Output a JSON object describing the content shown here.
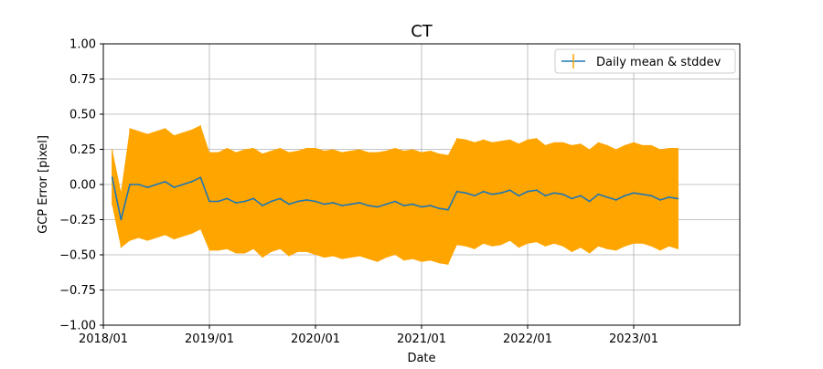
{
  "chart_data": {
    "type": "line",
    "title": "CT",
    "xlabel": "Date",
    "ylabel": "GCP Error [pixel]",
    "xlim": [
      "2018/01",
      "2024/01"
    ],
    "ylim": [
      -1.0,
      1.0
    ],
    "grid": true,
    "legend_position": "top-right",
    "x_tick_labels": [
      "2018/01",
      "2019/01",
      "2020/01",
      "2021/01",
      "2022/01",
      "2023/01"
    ],
    "y_tick_labels": [
      "1.00",
      "0.75",
      "0.50",
      "0.25",
      "0.00",
      "−0.25",
      "−0.50",
      "−0.75",
      "−1.00"
    ],
    "y_ticks": [
      1.0,
      0.75,
      0.5,
      0.25,
      0.0,
      -0.25,
      -0.5,
      -0.75,
      -1.0
    ],
    "series": [
      {
        "name": "Daily mean & stddev",
        "mean_color": "#1f77b4",
        "errorbar_color": "#ffa500",
        "x": [
          "2018/02",
          "2018/03",
          "2018/04",
          "2018/05",
          "2018/06",
          "2018/07",
          "2018/08",
          "2018/09",
          "2018/10",
          "2018/11",
          "2018/12",
          "2019/01",
          "2019/02",
          "2019/03",
          "2019/04",
          "2019/05",
          "2019/06",
          "2019/07",
          "2019/08",
          "2019/09",
          "2019/10",
          "2019/11",
          "2019/12",
          "2020/01",
          "2020/02",
          "2020/03",
          "2020/04",
          "2020/05",
          "2020/06",
          "2020/07",
          "2020/08",
          "2020/09",
          "2020/10",
          "2020/11",
          "2020/12",
          "2021/01",
          "2021/02",
          "2021/03",
          "2021/04",
          "2021/05",
          "2021/06",
          "2021/07",
          "2021/08",
          "2021/09",
          "2021/10",
          "2021/11",
          "2021/12",
          "2022/01",
          "2022/02",
          "2022/03",
          "2022/04",
          "2022/05",
          "2022/06",
          "2022/07",
          "2022/08",
          "2022/09",
          "2022/10",
          "2022/11",
          "2022/12",
          "2023/01",
          "2023/02",
          "2023/03",
          "2023/04",
          "2023/05",
          "2023/06"
        ],
        "mean": [
          0.05,
          -0.25,
          0.0,
          0.0,
          -0.02,
          0.0,
          0.02,
          -0.02,
          0.0,
          0.02,
          0.05,
          -0.12,
          -0.12,
          -0.1,
          -0.13,
          -0.12,
          -0.1,
          -0.15,
          -0.12,
          -0.1,
          -0.14,
          -0.12,
          -0.11,
          -0.12,
          -0.14,
          -0.13,
          -0.15,
          -0.14,
          -0.13,
          -0.15,
          -0.16,
          -0.14,
          -0.12,
          -0.15,
          -0.14,
          -0.16,
          -0.15,
          -0.17,
          -0.18,
          -0.05,
          -0.06,
          -0.08,
          -0.05,
          -0.07,
          -0.06,
          -0.04,
          -0.08,
          -0.05,
          -0.04,
          -0.08,
          -0.06,
          -0.07,
          -0.1,
          -0.08,
          -0.12,
          -0.07,
          -0.09,
          -0.11,
          -0.08,
          -0.06,
          -0.07,
          -0.08,
          -0.11,
          -0.09,
          -0.1
        ],
        "stddev": [
          0.2,
          0.2,
          0.4,
          0.38,
          0.38,
          0.38,
          0.38,
          0.37,
          0.37,
          0.37,
          0.37,
          0.35,
          0.35,
          0.36,
          0.36,
          0.37,
          0.36,
          0.37,
          0.36,
          0.36,
          0.37,
          0.36,
          0.37,
          0.38,
          0.38,
          0.38,
          0.38,
          0.38,
          0.38,
          0.38,
          0.39,
          0.38,
          0.38,
          0.39,
          0.39,
          0.39,
          0.39,
          0.39,
          0.39,
          0.38,
          0.38,
          0.38,
          0.37,
          0.37,
          0.37,
          0.36,
          0.37,
          0.37,
          0.37,
          0.36,
          0.36,
          0.37,
          0.38,
          0.37,
          0.37,
          0.37,
          0.37,
          0.36,
          0.36,
          0.36,
          0.35,
          0.36,
          0.36,
          0.35,
          0.36
        ]
      }
    ]
  }
}
